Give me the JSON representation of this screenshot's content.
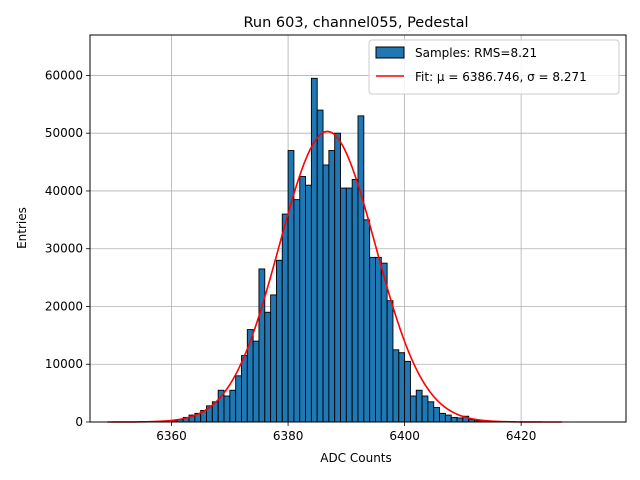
{
  "chart_data": {
    "type": "bar",
    "title": "Run 603, channel055, Pedestal",
    "xlabel": "ADC Counts",
    "ylabel": "Entries",
    "xlim": [
      6346,
      6438
    ],
    "ylim": [
      0,
      67000
    ],
    "grid": true,
    "legend_position": "top-right",
    "x_ticks": [
      6360,
      6380,
      6400,
      6420
    ],
    "y_ticks": [
      0,
      10000,
      20000,
      30000,
      40000,
      50000,
      60000
    ],
    "histogram": {
      "name": "Samples: RMS=8.21",
      "color": "#1f77b4",
      "bin_width": 1,
      "bin_starts": [
        6360,
        6361,
        6362,
        6363,
        6364,
        6365,
        6366,
        6367,
        6368,
        6369,
        6370,
        6371,
        6372,
        6373,
        6374,
        6375,
        6376,
        6377,
        6378,
        6379,
        6380,
        6381,
        6382,
        6383,
        6384,
        6385,
        6386,
        6387,
        6388,
        6389,
        6390,
        6391,
        6392,
        6393,
        6394,
        6395,
        6396,
        6397,
        6398,
        6399,
        6400,
        6401,
        6402,
        6403,
        6404,
        6405,
        6406,
        6407,
        6408,
        6409,
        6410,
        6411,
        6412,
        6413
      ],
      "counts": [
        200,
        400,
        800,
        1200,
        1500,
        2000,
        2800,
        3500,
        5500,
        4500,
        5500,
        8000,
        11500,
        16000,
        14000,
        26500,
        19000,
        22000,
        28000,
        36000,
        47000,
        38500,
        42500,
        41000,
        59500,
        54000,
        44500,
        47000,
        50000,
        40500,
        40500,
        42000,
        53000,
        35000,
        28500,
        28500,
        27500,
        21000,
        12500,
        12000,
        10500,
        4500,
        5500,
        4500,
        3500,
        2500,
        1500,
        1200,
        800,
        700,
        1000,
        400,
        200,
        100
      ]
    },
    "fit": {
      "name": "Fit: μ = 6386.746, σ = 8.271",
      "color": "#ff0000",
      "mu": 6386.746,
      "sigma": 8.271,
      "amplitude": 50300,
      "x_range": [
        6349,
        6427
      ]
    }
  }
}
